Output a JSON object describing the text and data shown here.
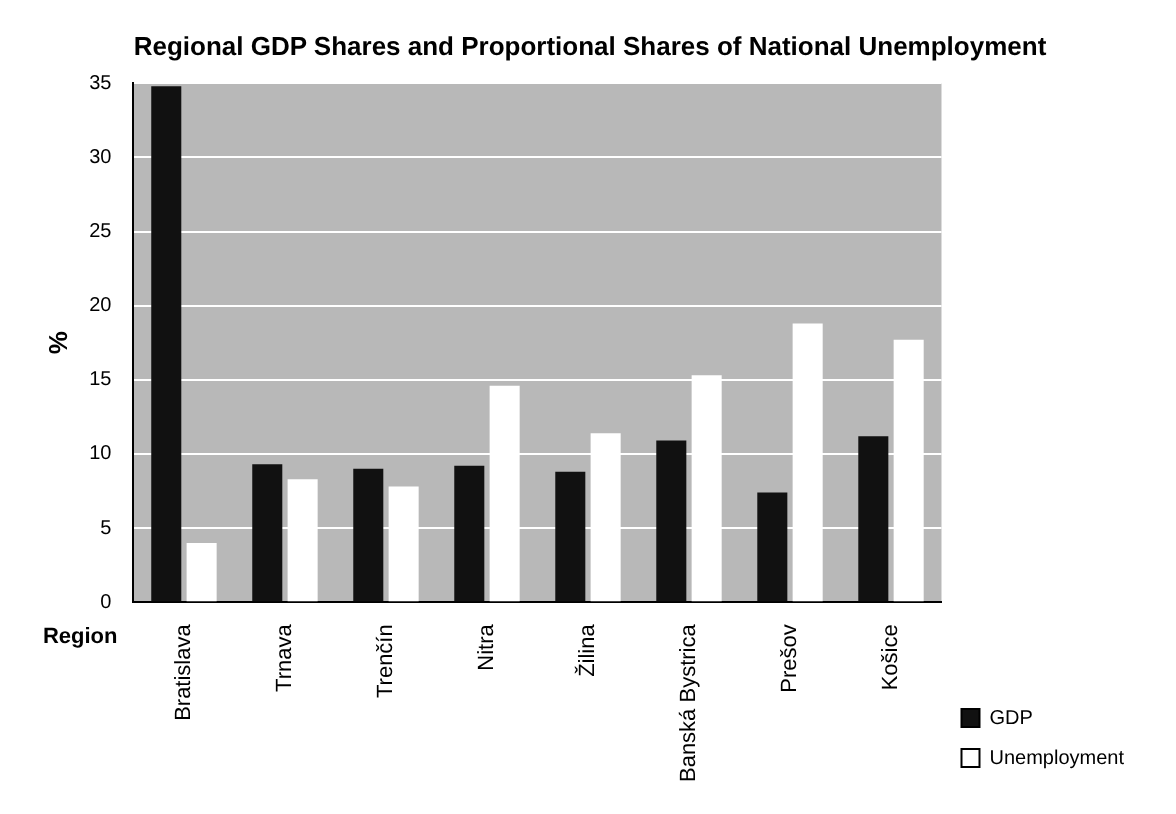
{
  "chart_data": {
    "type": "bar",
    "title": "Regional GDP Shares and Proportional Shares of National Unemployment",
    "xlabel": "Region",
    "ylabel": "%",
    "categories": [
      "Bratislava",
      "Trnava",
      "Trenčín",
      "Nitra",
      "Žilina",
      "Banská Bystrica",
      "Prešov",
      "Košice"
    ],
    "series": [
      {
        "name": "GDP",
        "color": "#111111",
        "values": [
          34.8,
          9.3,
          9.0,
          9.2,
          8.8,
          10.9,
          7.4,
          11.2
        ]
      },
      {
        "name": "Unemployment",
        "color": "#ffffff",
        "values": [
          4.0,
          8.3,
          7.8,
          14.6,
          11.4,
          15.3,
          18.8,
          17.7
        ]
      }
    ],
    "ylim": [
      0,
      35
    ],
    "yticks": [
      0,
      5,
      10,
      15,
      20,
      25,
      30,
      35
    ],
    "grid": "y",
    "legend": "bottom right"
  }
}
